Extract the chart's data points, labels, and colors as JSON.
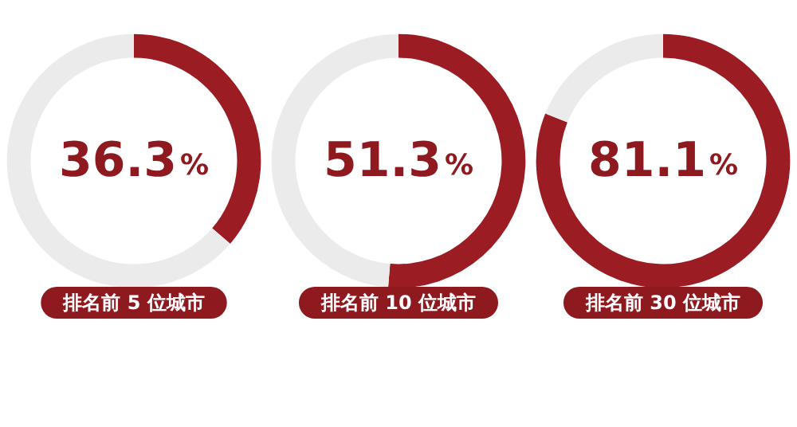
{
  "chart_data": [
    {
      "type": "donut",
      "title": "排名前 5 位城市",
      "categories": [
        null,
        null
      ],
      "values": [
        36.3,
        63.7
      ],
      "colors": [
        "#9b1c22",
        "#ebebeb"
      ],
      "value_labels": [
        "36.3%",
        null
      ]
    },
    {
      "type": "donut",
      "title": "排名前 10 位城市",
      "categories": [
        null,
        null
      ],
      "values": [
        51.3,
        48.7
      ],
      "colors": [
        "#9b1c22",
        "#ebebeb"
      ],
      "value_labels": [
        "51.3%",
        null
      ]
    },
    {
      "type": "donut",
      "title": "排名前 30 位城市",
      "categories": [
        null,
        null
      ],
      "values": [
        81.1,
        18.9
      ],
      "colors": [
        "#9b1c22",
        "#ebebeb"
      ],
      "value_labels": [
        "81.1%",
        null
      ]
    }
  ]
}
